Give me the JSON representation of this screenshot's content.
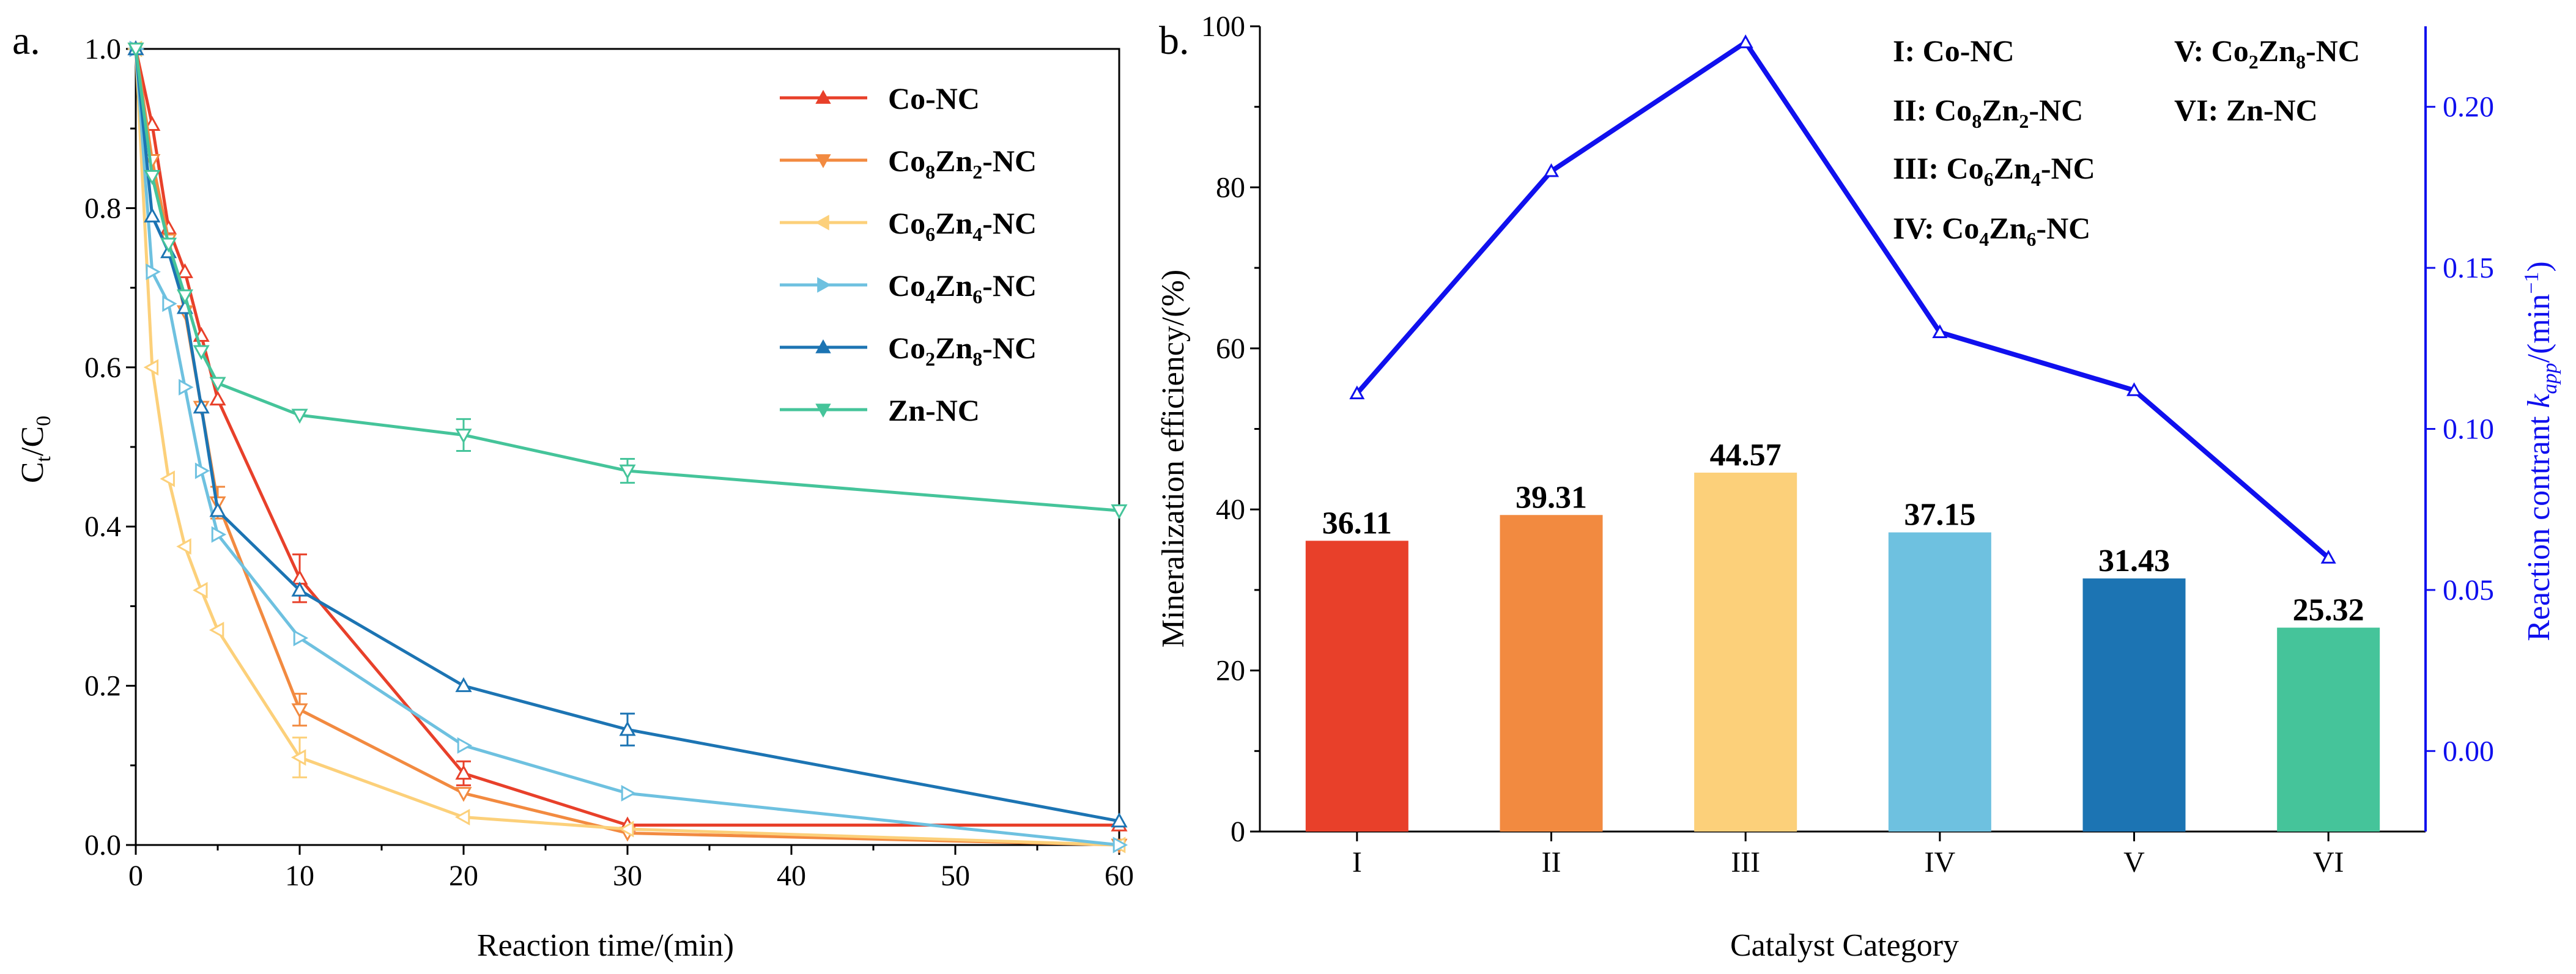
{
  "colors": {
    "co": "#e8402a",
    "co8zn2": "#f28a40",
    "co6zn4": "#fcd07a",
    "co4zn6": "#6ec1e0",
    "co2zn8": "#1c74b3",
    "zn": "#45c49a",
    "line_b": "#1010ee"
  },
  "chart_data": [
    {
      "type": "line",
      "panel_label": "a.",
      "xlabel": "Reaction time/(min)",
      "ylabel": "Ct/C0",
      "xlim": [
        0,
        60
      ],
      "ylim": [
        0.0,
        1.0
      ],
      "xticks": [
        "0",
        "10",
        "20",
        "30",
        "40",
        "50",
        "60"
      ],
      "yticks": [
        "0.0",
        "0.2",
        "0.4",
        "0.6",
        "0.8",
        "1.0"
      ],
      "x": [
        0,
        1,
        2,
        3,
        4,
        5,
        10,
        20,
        30,
        60
      ],
      "series": [
        {
          "name": "Co-NC",
          "base": "Co-NC",
          "sub": [],
          "color_key": "co",
          "marker": "tri-up",
          "values": [
            1.0,
            0.905,
            0.775,
            0.72,
            0.64,
            0.56,
            0.335,
            0.09,
            0.025,
            0.025
          ],
          "errors": [
            0,
            0,
            0,
            0,
            0,
            0,
            0.03,
            0.015,
            0,
            0
          ]
        },
        {
          "name": "Co8Zn2-NC",
          "base": "Co",
          "sub": [
            "8",
            "Zn",
            "2",
            "-NC"
          ],
          "color_key": "co8zn2",
          "marker": "tri-down",
          "values": [
            1.0,
            0.86,
            0.76,
            0.67,
            0.55,
            0.43,
            0.17,
            0.065,
            0.015,
            0.0
          ],
          "errors": [
            0,
            0,
            0,
            0,
            0,
            0.02,
            0.02,
            0,
            0,
            0
          ]
        },
        {
          "name": "Co6Zn4-NC",
          "base": "Co",
          "sub": [
            "6",
            "Zn",
            "4",
            "-NC"
          ],
          "color_key": "co6zn4",
          "marker": "tri-left",
          "values": [
            1.0,
            0.6,
            0.46,
            0.375,
            0.32,
            0.27,
            0.11,
            0.035,
            0.02,
            0.0
          ],
          "errors": [
            0,
            0,
            0,
            0,
            0,
            0,
            0.025,
            0,
            0,
            0
          ]
        },
        {
          "name": "Co4Zn6-NC",
          "base": "Co",
          "sub": [
            "4",
            "Zn",
            "6",
            "-NC"
          ],
          "color_key": "co4zn6",
          "marker": "tri-right",
          "values": [
            1.0,
            0.72,
            0.68,
            0.575,
            0.47,
            0.39,
            0.26,
            0.125,
            0.065,
            0.0
          ],
          "errors": [
            0,
            0,
            0,
            0,
            0,
            0,
            0,
            0,
            0,
            0
          ]
        },
        {
          "name": "Co2Zn8-NC",
          "base": "Co",
          "sub": [
            "2",
            "Zn",
            "8",
            "-NC"
          ],
          "color_key": "co2zn8",
          "marker": "tri-up",
          "values": [
            1.0,
            0.79,
            0.745,
            0.675,
            0.55,
            0.42,
            0.32,
            0.2,
            0.145,
            0.03
          ],
          "errors": [
            0,
            0,
            0,
            0,
            0,
            0,
            0,
            0,
            0.02,
            0
          ]
        },
        {
          "name": "Zn-NC",
          "base": "Zn-NC",
          "sub": [],
          "color_key": "zn",
          "marker": "tri-down",
          "values": [
            1.0,
            0.84,
            0.755,
            0.69,
            0.62,
            0.58,
            0.54,
            0.515,
            0.47,
            0.42
          ],
          "errors": [
            0,
            0,
            0,
            0,
            0,
            0,
            0,
            0.02,
            0.015,
            0
          ]
        }
      ]
    },
    {
      "type": "bar",
      "panel_label": "b.",
      "xlabel": "Catalyst Category",
      "ylabel": "Mineralization efficiency/(%)",
      "y2label": "Reaction contrant kapp/(min−1)",
      "y2label_parts": [
        "Reaction contrant ",
        "k",
        "app",
        "/(min",
        "−1",
        ")"
      ],
      "categories": [
        "I",
        "II",
        "III",
        "IV",
        "V",
        "VI"
      ],
      "values": [
        36.11,
        39.31,
        44.57,
        37.15,
        31.43,
        25.32
      ],
      "value_labels": [
        "36.11",
        "39.31",
        "44.57",
        "37.15",
        "31.43",
        "25.32"
      ],
      "bar_color_keys": [
        "co",
        "co8zn2",
        "co6zn4",
        "co4zn6",
        "co2zn8",
        "zn"
      ],
      "ylim": [
        0,
        100
      ],
      "yticks": [
        "0",
        "20",
        "40",
        "60",
        "80",
        "100"
      ],
      "y2lim": [
        -0.025,
        0.225
      ],
      "y2ticks": [
        "0.00",
        "0.05",
        "0.10",
        "0.15",
        "0.20"
      ],
      "line_values": [
        0.111,
        0.18,
        0.22,
        0.13,
        0.112,
        0.06
      ],
      "legend": [
        {
          "key": "I: ",
          "parts": [
            "Co-NC"
          ]
        },
        {
          "key": "II: ",
          "parts": [
            "Co",
            "8",
            "Zn",
            "2",
            "-NC"
          ]
        },
        {
          "key": "III: ",
          "parts": [
            "Co",
            "6",
            "Zn",
            "4",
            "-NC"
          ]
        },
        {
          "key": "IV: ",
          "parts": [
            "Co",
            "4",
            "Zn",
            "6",
            "-NC"
          ]
        },
        {
          "key": "V: ",
          "parts": [
            "Co",
            "2",
            "Zn",
            "8",
            "-NC"
          ]
        },
        {
          "key": "VI: ",
          "parts": [
            "Zn-NC"
          ]
        }
      ]
    }
  ]
}
